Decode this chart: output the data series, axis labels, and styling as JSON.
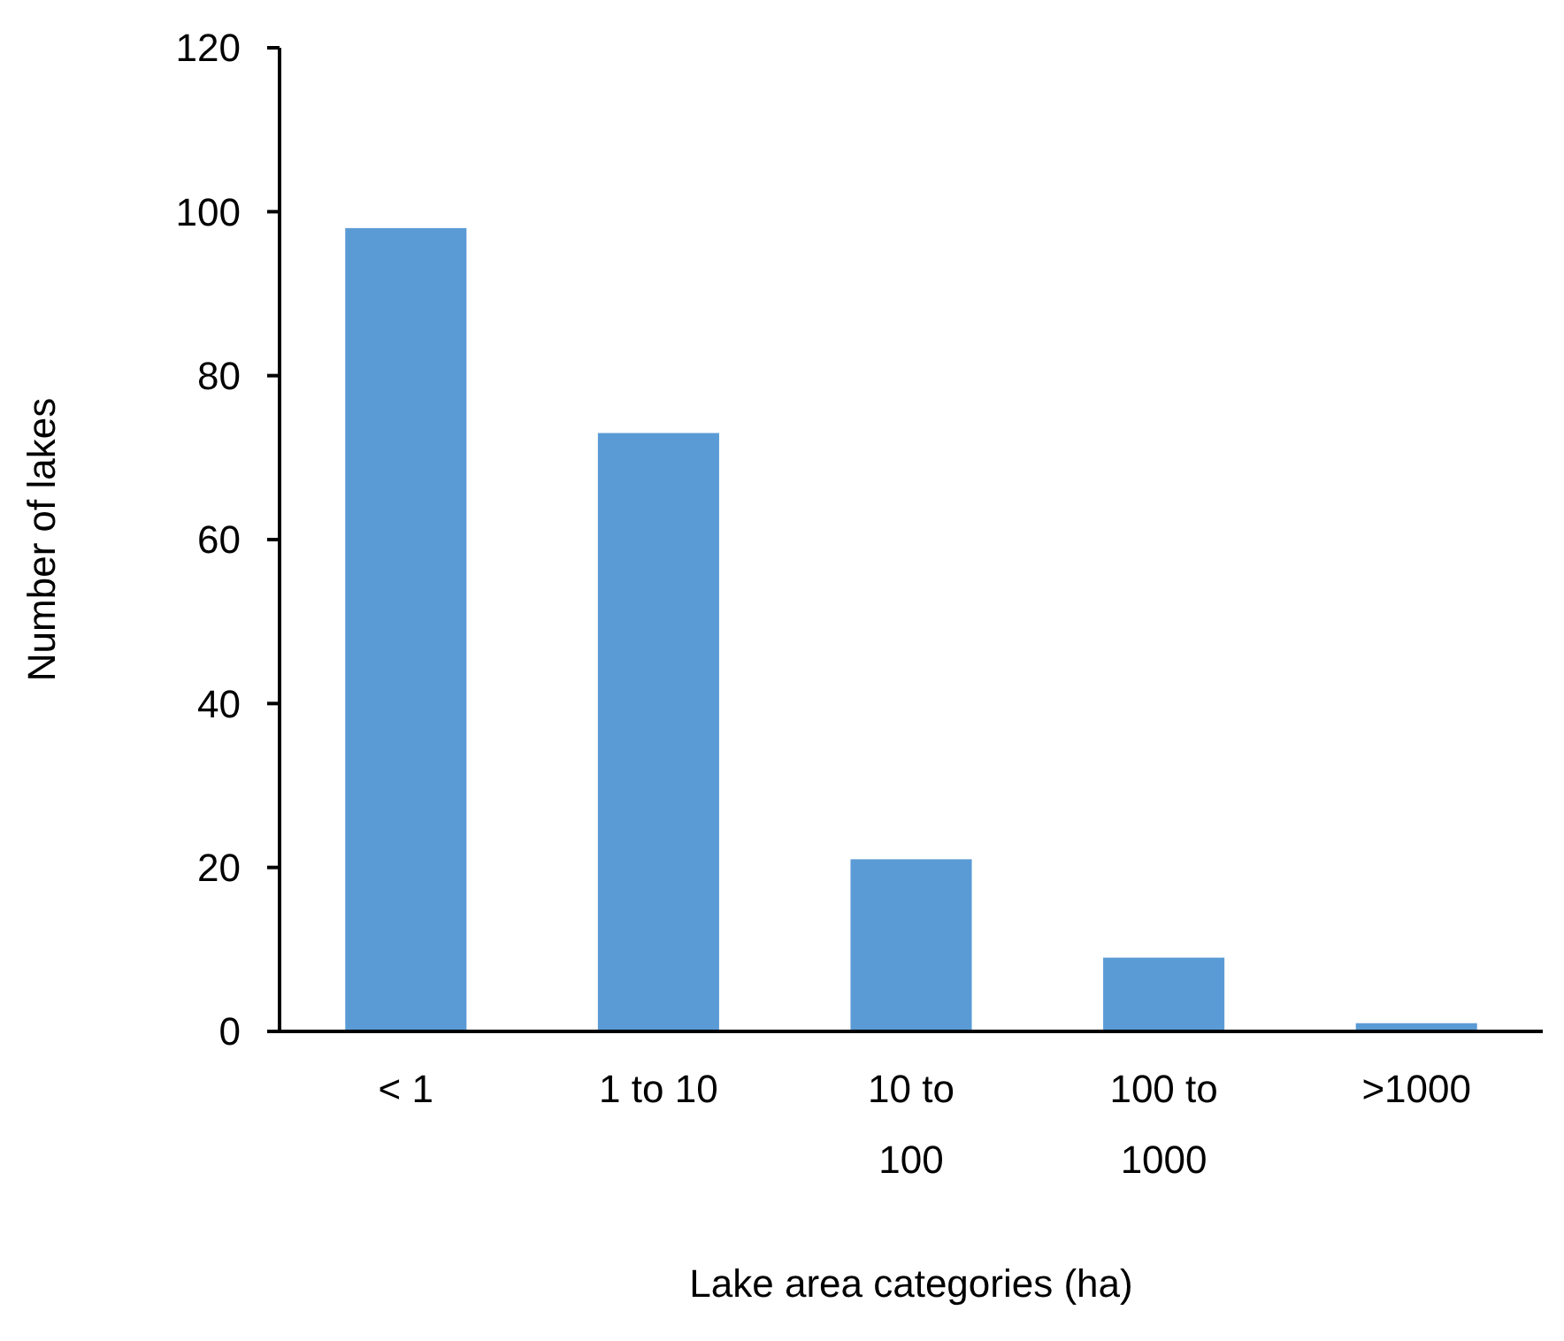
{
  "chart_data": {
    "type": "bar",
    "xlabel": "Lake area categories (ha)",
    "ylabel": "Number of lakes",
    "categories": [
      "< 1",
      "1 to 10",
      "10 to 100",
      "100 to 1000",
      ">1000"
    ],
    "values": [
      98,
      73,
      21,
      9,
      1
    ],
    "color": "#5b9bd5",
    "ylim": [
      0,
      120
    ],
    "yticks": [
      0,
      20,
      40,
      60,
      80,
      100,
      120
    ]
  }
}
